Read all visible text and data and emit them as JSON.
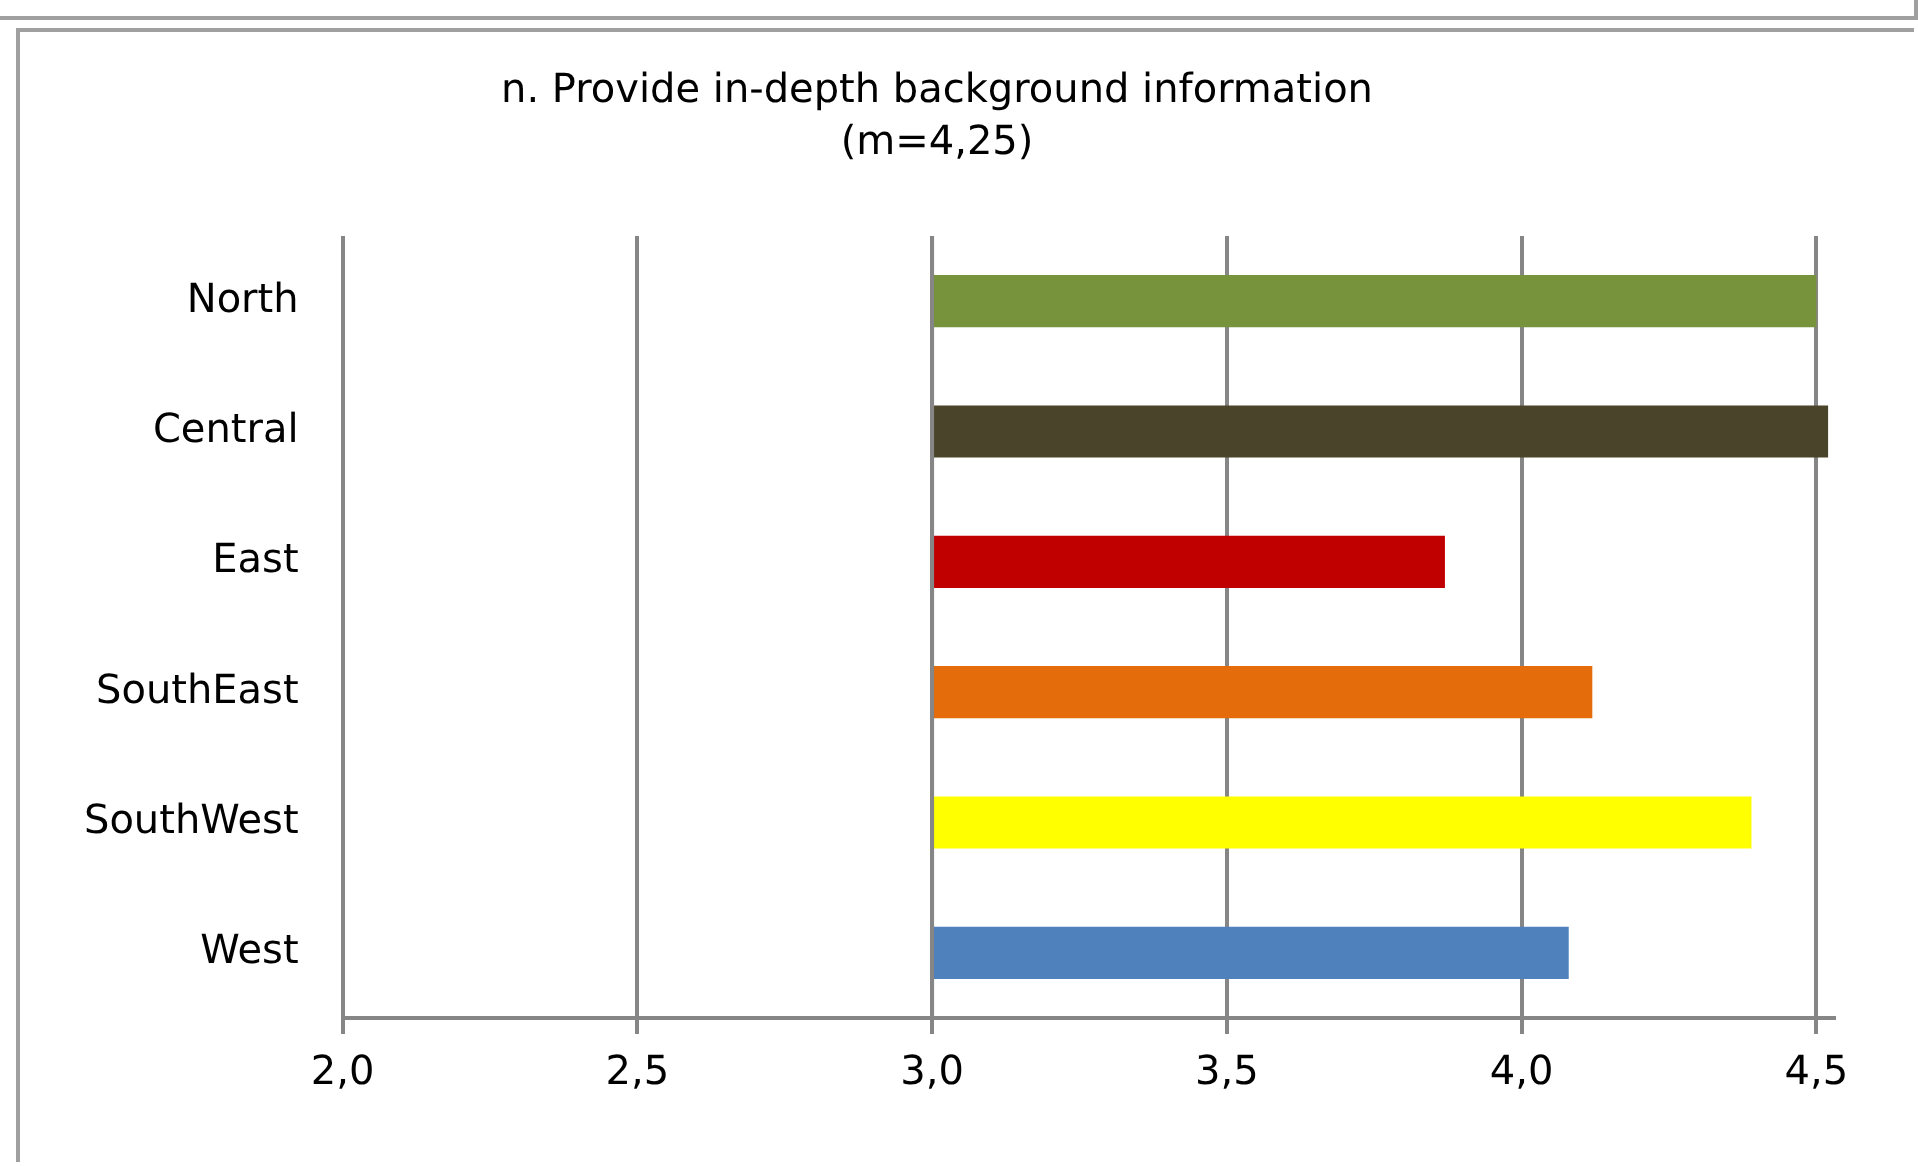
{
  "chart_data": {
    "type": "bar",
    "orientation": "horizontal",
    "title": "n. Provide in-depth background information",
    "subtitle": "(m=4,25)",
    "categories": [
      "North",
      "Central",
      "East",
      "SouthEast",
      "SouthWest",
      "West"
    ],
    "base": [
      3,
      3,
      3,
      3,
      3,
      3
    ],
    "values": [
      1.5,
      1.52,
      0.87,
      1.12,
      1.39,
      1.08
    ],
    "colors": [
      "#77933c",
      "#4a452a",
      "#c00000",
      "#e46c0a",
      "#ffff00",
      "#4f81bd"
    ],
    "xlim": [
      2,
      4.53
    ],
    "xticks": [
      {
        "value": 2,
        "label": "2,0"
      },
      {
        "value": 2.5,
        "label": "2,5"
      },
      {
        "value": 3,
        "label": "3,0"
      },
      {
        "value": 3.5,
        "label": "3,5"
      },
      {
        "value": 4,
        "label": "4,0"
      },
      {
        "value": 4.5,
        "label": "4,5"
      }
    ],
    "grid": "x",
    "legend": false
  }
}
